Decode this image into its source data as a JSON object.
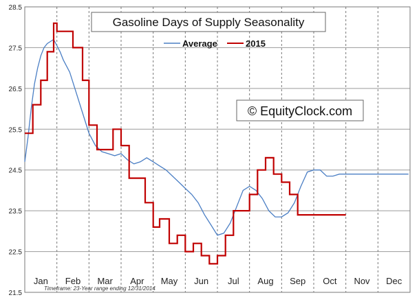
{
  "chart_data": {
    "type": "line",
    "title": "Gasoline Days of Supply Seasonality",
    "watermark": "© EquityClock.com",
    "footnote": "Timeframe: 23-Year range ending 12/31/2014",
    "ylim": [
      21.5,
      28.5
    ],
    "yticks": [
      "21.5",
      "22.5",
      "23.5",
      "24.5",
      "25.5",
      "26.5",
      "27.5",
      "28.5"
    ],
    "months": [
      "Jan",
      "Feb",
      "Mar",
      "Apr",
      "May",
      "Jun",
      "Jul",
      "Aug",
      "Sep",
      "Oct",
      "Nov",
      "Dec"
    ],
    "grid": true,
    "legend_position": "top-center",
    "colors": {
      "average": "#4a7ec4",
      "y2015": "#c00000"
    },
    "series": [
      {
        "name": "Average",
        "x": [
          0,
          0.1,
          0.2,
          0.3,
          0.4,
          0.5,
          0.6,
          0.7,
          0.8,
          0.9,
          1.0,
          1.1,
          1.2,
          1.4,
          1.6,
          1.8,
          2.0,
          2.2,
          2.4,
          2.6,
          2.8,
          3.0,
          3.2,
          3.4,
          3.6,
          3.8,
          4.0,
          4.2,
          4.4,
          4.6,
          4.8,
          5.0,
          5.2,
          5.4,
          5.6,
          5.8,
          6.0,
          6.2,
          6.4,
          6.6,
          6.8,
          7.0,
          7.2,
          7.4,
          7.6,
          7.8,
          8.0,
          8.2,
          8.4,
          8.6,
          8.8,
          9.0,
          9.2,
          9.4,
          9.6,
          9.8,
          10.0,
          10.2,
          10.4,
          10.6,
          10.8,
          11.0,
          11.2,
          11.4,
          11.6,
          11.8,
          11.95
        ],
        "values": [
          24.7,
          25.3,
          26.0,
          26.6,
          27.0,
          27.3,
          27.5,
          27.6,
          27.65,
          27.7,
          27.55,
          27.4,
          27.2,
          26.9,
          26.4,
          25.9,
          25.4,
          25.1,
          24.95,
          24.9,
          24.85,
          24.9,
          24.75,
          24.65,
          24.7,
          24.8,
          24.7,
          24.6,
          24.5,
          24.35,
          24.2,
          24.05,
          23.9,
          23.7,
          23.4,
          23.15,
          22.9,
          22.95,
          23.2,
          23.6,
          24.0,
          24.1,
          24.0,
          23.8,
          23.5,
          23.35,
          23.35,
          23.45,
          23.7,
          24.1,
          24.45,
          24.5,
          24.5,
          24.35,
          24.35,
          24.4,
          24.4,
          24.4,
          24.4,
          24.4,
          24.4,
          24.4,
          24.4,
          24.4,
          24.4,
          24.4,
          24.4
        ]
      },
      {
        "name": "2015",
        "x": [
          0,
          0.25,
          0.25,
          0.5,
          0.5,
          0.7,
          0.7,
          0.9,
          0.9,
          1.0,
          1.0,
          1.5,
          1.5,
          1.8,
          1.8,
          2.0,
          2.0,
          2.25,
          2.25,
          2.75,
          2.75,
          3.0,
          3.0,
          3.25,
          3.25,
          3.75,
          3.75,
          4.0,
          4.0,
          4.2,
          4.2,
          4.5,
          4.5,
          4.75,
          4.75,
          5.0,
          5.0,
          5.25,
          5.25,
          5.5,
          5.5,
          5.75,
          5.75,
          6.0,
          6.0,
          6.25,
          6.25,
          6.5,
          6.5,
          7.0,
          7.0,
          7.25,
          7.25,
          7.5,
          7.5,
          7.75,
          7.75,
          8.0,
          8.0,
          8.25,
          8.25,
          8.5,
          8.5,
          8.75,
          8.75,
          9.0,
          9.0,
          9.25,
          9.25,
          9.5,
          9.5,
          9.75,
          9.75,
          10.0
        ],
        "values": [
          25.4,
          25.4,
          26.1,
          26.1,
          26.7,
          26.7,
          27.4,
          27.4,
          28.1,
          28.1,
          27.9,
          27.9,
          27.5,
          27.5,
          26.7,
          26.7,
          25.6,
          25.6,
          25.0,
          25.0,
          25.5,
          25.5,
          25.1,
          25.1,
          24.3,
          24.3,
          23.7,
          23.7,
          23.1,
          23.1,
          23.3,
          23.3,
          22.7,
          22.7,
          22.9,
          22.9,
          22.5,
          22.5,
          22.7,
          22.7,
          22.4,
          22.4,
          22.2,
          22.2,
          22.4,
          22.4,
          22.9,
          22.9,
          23.5,
          23.5,
          23.9,
          23.9,
          24.5,
          24.5,
          24.8,
          24.8,
          24.4,
          24.4,
          24.2,
          24.2,
          23.9,
          23.9,
          23.4,
          23.4,
          23.4,
          23.4,
          23.4,
          23.4,
          23.4,
          23.4,
          23.4,
          23.4,
          23.4,
          23.4
        ]
      }
    ]
  }
}
